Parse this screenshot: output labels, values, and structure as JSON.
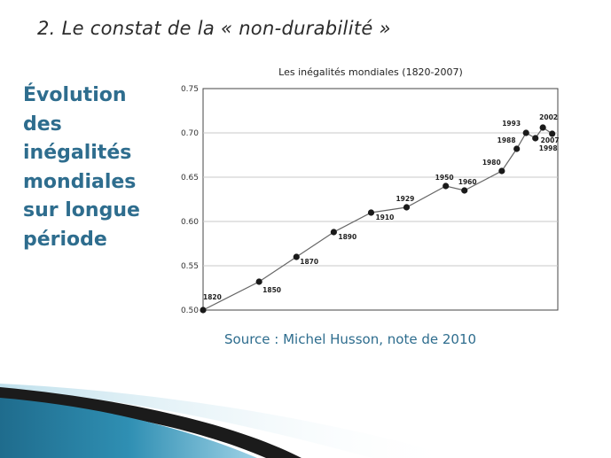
{
  "slide": {
    "title": "2. Le constat de la « non-durabilité »",
    "side_lines": [
      "Évolution",
      "des",
      "inégalités",
      "mondiales",
      "sur longue",
      "période"
    ],
    "source": "Source : Michel Husson, note de 2010"
  },
  "chart_data": {
    "type": "line",
    "title": "Les inégalités mondiales (1820-2007)",
    "xlabel": "",
    "ylabel": "",
    "x": [
      1820,
      1850,
      1870,
      1890,
      1910,
      1929,
      1950,
      1960,
      1980,
      1988,
      1993,
      1998,
      2002,
      2007
    ],
    "values": [
      0.5,
      0.532,
      0.56,
      0.588,
      0.61,
      0.616,
      0.64,
      0.635,
      0.657,
      0.682,
      0.7,
      0.694,
      0.706,
      0.699
    ],
    "point_labels": [
      "1820",
      "1850",
      "1870",
      "1890",
      "1910",
      "1929",
      "1950",
      "1960",
      "1980",
      "1988",
      "1993",
      "1998",
      "2002",
      "2007"
    ],
    "xlim": [
      1820,
      2010
    ],
    "ylim": [
      0.5,
      0.75
    ],
    "yticks": [
      "0.50",
      "0.55",
      "0.60",
      "0.65",
      "0.70",
      "0.75"
    ],
    "grid": true,
    "legend": "none",
    "colors": {
      "line": "#666666",
      "marker": "#1a1a1a",
      "grid": "#c8c8c8",
      "frame": "#444444"
    }
  }
}
